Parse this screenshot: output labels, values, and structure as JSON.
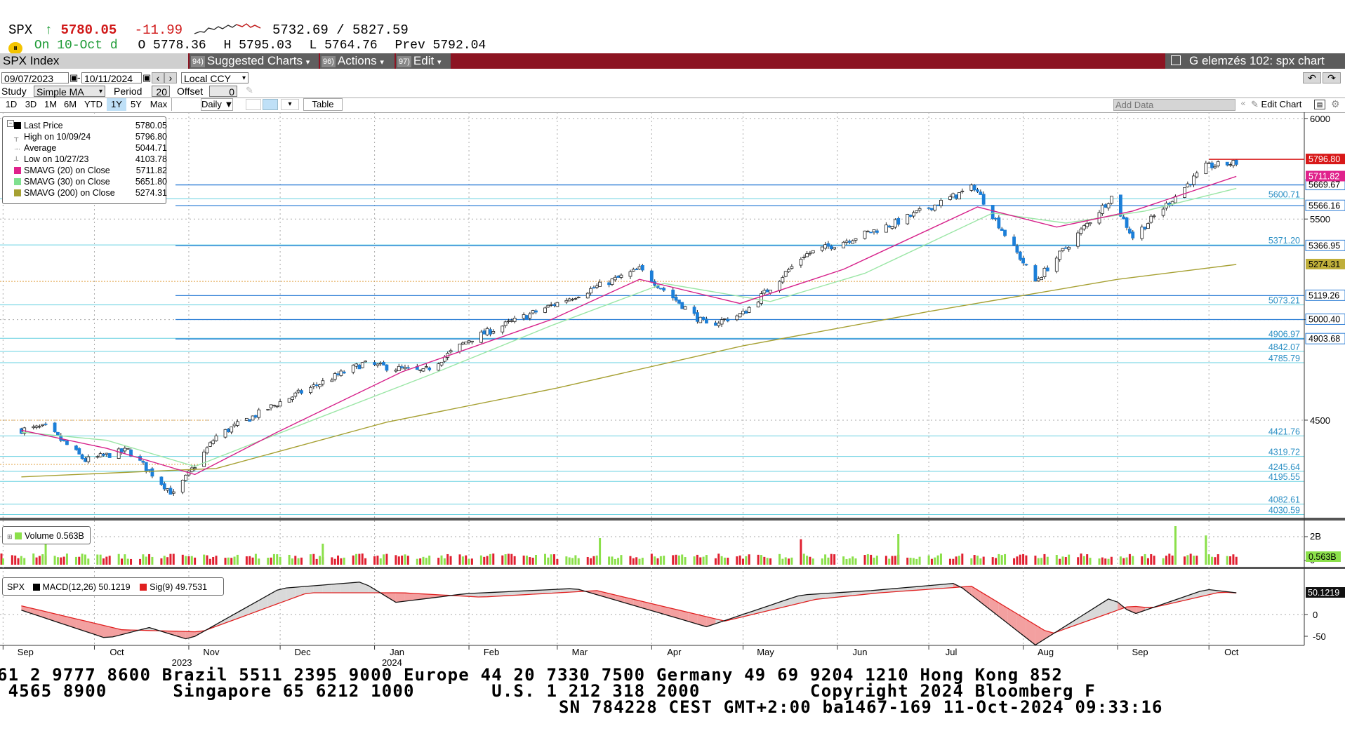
{
  "header": {
    "ticker": "SPX",
    "arrow": "↑",
    "last": "5780.05",
    "change": "-11.99",
    "range": "5732.69 / 5827.59",
    "on_date": "On 10-Oct d",
    "open": "O 5778.36",
    "high": "H 5795.03",
    "low": "L 5764.76",
    "prev": "Prev 5792.04"
  },
  "command_bar": {
    "security": "SPX Index",
    "suggested_charts": "Suggested Charts",
    "suggested_badge": "94)",
    "actions": "Actions",
    "actions_badge": "96)",
    "edit": "Edit",
    "edit_badge": "97)",
    "title": "G elemzés 102: spx chart"
  },
  "controls": {
    "start_date": "09/07/2023",
    "end_date": "10/11/2024",
    "currency": "Local CCY",
    "study_label": "Study",
    "study_value": "Simple MA",
    "period_label": "Period",
    "period_value": "20",
    "offset_label": "Offset",
    "offset_value": "0",
    "ranges": [
      "1D",
      "3D",
      "1M",
      "6M",
      "YTD",
      "1Y",
      "5Y",
      "Max"
    ],
    "selected_range": "1Y",
    "frequency": "Daily",
    "table": "Table",
    "add_data": "Add Data",
    "edit_chart": "Edit Chart"
  },
  "legend": {
    "rows": [
      {
        "label": "Last Price",
        "value": "5780.05",
        "color": "#000000"
      },
      {
        "label": "High on 10/09/24",
        "value": "5796.80",
        "color": ""
      },
      {
        "label": "Average",
        "value": "5044.71",
        "color": ""
      },
      {
        "label": "Low on 10/27/23",
        "value": "4103.78",
        "color": ""
      },
      {
        "label": "SMAVG (20)  on Close",
        "value": "5711.82",
        "color": "#e0228c"
      },
      {
        "label": "SMAVG (30)  on Close",
        "value": "5651.80",
        "color": "#7fe08f"
      },
      {
        "label": "SMAVG (200)  on Close",
        "value": "5274.31",
        "color": "#a6a032"
      }
    ]
  },
  "volume_legend": {
    "label": "Volume",
    "value": "0.563B",
    "color": "#8be04a"
  },
  "macd_legend": {
    "ticker": "SPX",
    "macd_label": "MACD(12,26)",
    "macd_value": "50.1219",
    "sig_label": "Sig(9)",
    "sig_value": "49.7531",
    "macd_color": "#000000",
    "sig_color": "#e02020"
  },
  "chart_data": {
    "type": "candlestick",
    "y_axis": {
      "ticks": [
        4500,
        5000,
        5500,
        6000
      ],
      "range": [
        4015,
        6010
      ]
    },
    "x_axis": {
      "months": [
        "Sep",
        "Oct",
        "Nov",
        "Dec",
        "Jan",
        "Feb",
        "Mar",
        "Apr",
        "May",
        "Jun",
        "Jul",
        "Aug",
        "Sep",
        "Oct"
      ],
      "years": [
        "2023",
        "2024"
      ]
    },
    "close_path": [
      {
        "date": "2023-09-07",
        "v": 4452
      },
      {
        "date": "2023-09-15",
        "v": 4465
      },
      {
        "date": "2023-09-28",
        "v": 4300
      },
      {
        "date": "2023-10-12",
        "v": 4350
      },
      {
        "date": "2023-10-27",
        "v": 4130
      },
      {
        "date": "2023-11-10",
        "v": 4420
      },
      {
        "date": "2023-12-01",
        "v": 4590
      },
      {
        "date": "2023-12-28",
        "v": 4780
      },
      {
        "date": "2024-01-17",
        "v": 4740
      },
      {
        "date": "2024-02-01",
        "v": 4900
      },
      {
        "date": "2024-02-28",
        "v": 5070
      },
      {
        "date": "2024-03-28",
        "v": 5250
      },
      {
        "date": "2024-04-19",
        "v": 4970
      },
      {
        "date": "2024-05-01",
        "v": 5030
      },
      {
        "date": "2024-05-21",
        "v": 5320
      },
      {
        "date": "2024-06-20",
        "v": 5480
      },
      {
        "date": "2024-07-16",
        "v": 5660
      },
      {
        "date": "2024-08-05",
        "v": 5190
      },
      {
        "date": "2024-08-30",
        "v": 5610
      },
      {
        "date": "2024-09-06",
        "v": 5410
      },
      {
        "date": "2024-09-30",
        "v": 5760
      },
      {
        "date": "2024-10-10",
        "v": 5780
      }
    ],
    "sma20": [
      {
        "date": "2023-09-07",
        "v": 4450
      },
      {
        "date": "2023-10-05",
        "v": 4360
      },
      {
        "date": "2023-11-03",
        "v": 4230
      },
      {
        "date": "2023-11-30",
        "v": 4440
      },
      {
        "date": "2024-01-10",
        "v": 4740
      },
      {
        "date": "2024-02-28",
        "v": 5000
      },
      {
        "date": "2024-03-28",
        "v": 5200
      },
      {
        "date": "2024-04-30",
        "v": 5080
      },
      {
        "date": "2024-06-03",
        "v": 5250
      },
      {
        "date": "2024-07-17",
        "v": 5560
      },
      {
        "date": "2024-08-12",
        "v": 5460
      },
      {
        "date": "2024-09-06",
        "v": 5540
      },
      {
        "date": "2024-10-10",
        "v": 5712
      }
    ],
    "sma30": [
      {
        "date": "2023-09-07",
        "v": 4440
      },
      {
        "date": "2023-10-05",
        "v": 4400
      },
      {
        "date": "2023-11-03",
        "v": 4270
      },
      {
        "date": "2023-12-10",
        "v": 4490
      },
      {
        "date": "2024-01-20",
        "v": 4730
      },
      {
        "date": "2024-02-28",
        "v": 4970
      },
      {
        "date": "2024-04-05",
        "v": 5180
      },
      {
        "date": "2024-05-10",
        "v": 5090
      },
      {
        "date": "2024-06-10",
        "v": 5230
      },
      {
        "date": "2024-07-22",
        "v": 5530
      },
      {
        "date": "2024-08-15",
        "v": 5480
      },
      {
        "date": "2024-09-10",
        "v": 5540
      },
      {
        "date": "2024-10-10",
        "v": 5652
      }
    ],
    "sma200": [
      {
        "date": "2023-09-07",
        "v": 4218
      },
      {
        "date": "2023-11-10",
        "v": 4260
      },
      {
        "date": "2024-01-05",
        "v": 4490
      },
      {
        "date": "2024-03-01",
        "v": 4660
      },
      {
        "date": "2024-05-01",
        "v": 4870
      },
      {
        "date": "2024-07-01",
        "v": 5040
      },
      {
        "date": "2024-09-01",
        "v": 5200
      },
      {
        "date": "2024-10-10",
        "v": 5274
      }
    ],
    "horizontal_levels": [
      {
        "v": 5669.67,
        "label": "5669.67",
        "style": "blue-tag"
      },
      {
        "v": 5600.71,
        "label": "5600.71",
        "style": "text"
      },
      {
        "v": 5566.16,
        "label": "5566.16",
        "style": "blue-tag"
      },
      {
        "v": 5371.2,
        "label": "5371.20",
        "style": "text"
      },
      {
        "v": 5366.95,
        "label": "5366.95",
        "style": "blue-tag"
      },
      {
        "v": 5119.26,
        "label": "5119.26",
        "style": "blue-tag"
      },
      {
        "v": 5073.21,
        "label": "5073.21",
        "style": "text"
      },
      {
        "v": 5000.4,
        "label": "5000.40",
        "style": "blue-tag"
      },
      {
        "v": 4906.97,
        "label": "4906.97",
        "style": "text"
      },
      {
        "v": 4903.68,
        "label": "4903.68",
        "style": "blue-tag"
      },
      {
        "v": 4842.07,
        "label": "4842.07",
        "style": "text"
      },
      {
        "v": 4785.79,
        "label": "4785.79",
        "style": "text"
      },
      {
        "v": 4421.76,
        "label": "4421.76",
        "style": "text"
      },
      {
        "v": 4319.72,
        "label": "4319.72",
        "style": "text"
      },
      {
        "v": 4245.64,
        "label": "4245.64",
        "style": "text"
      },
      {
        "v": 4195.55,
        "label": "4195.55",
        "style": "text"
      },
      {
        "v": 4082.61,
        "label": "4082.61",
        "style": "text"
      },
      {
        "v": 4030.59,
        "label": "4030.59",
        "style": "text"
      }
    ],
    "price_tags": [
      {
        "label": "5796.80",
        "bg": "#d81818",
        "fg": "#ffffff"
      },
      {
        "label": "5711.82",
        "bg": "#e0228c",
        "fg": "#ffffff"
      },
      {
        "label": "5274.31",
        "bg": "#bfae3a",
        "fg": "#000000"
      }
    ],
    "volume": {
      "ticks": [
        "2B",
        "0"
      ],
      "last": "0.563B"
    },
    "macd": {
      "ticks": [
        "0",
        "-50"
      ],
      "last": "50.1219",
      "macd_path": [
        {
          "date": "2023-09-07",
          "v": 10
        },
        {
          "date": "2023-10-05",
          "v": -55
        },
        {
          "date": "2023-10-19",
          "v": -30
        },
        {
          "date": "2023-11-01",
          "v": -58
        },
        {
          "date": "2023-12-01",
          "v": 60
        },
        {
          "date": "2023-12-28",
          "v": 75
        },
        {
          "date": "2024-01-08",
          "v": 28
        },
        {
          "date": "2024-01-31",
          "v": 48
        },
        {
          "date": "2024-03-07",
          "v": 60
        },
        {
          "date": "2024-04-19",
          "v": -28
        },
        {
          "date": "2024-05-20",
          "v": 45
        },
        {
          "date": "2024-06-12",
          "v": 55
        },
        {
          "date": "2024-07-10",
          "v": 72
        },
        {
          "date": "2024-08-05",
          "v": -70
        },
        {
          "date": "2024-08-30",
          "v": 40
        },
        {
          "date": "2024-09-06",
          "v": 0
        },
        {
          "date": "2024-09-30",
          "v": 58
        },
        {
          "date": "2024-10-10",
          "v": 50
        }
      ],
      "signal_path": [
        {
          "date": "2023-09-07",
          "v": 20
        },
        {
          "date": "2023-10-10",
          "v": -35
        },
        {
          "date": "2023-11-05",
          "v": -40
        },
        {
          "date": "2023-12-10",
          "v": 50
        },
        {
          "date": "2024-01-10",
          "v": 50
        },
        {
          "date": "2024-02-05",
          "v": 40
        },
        {
          "date": "2024-03-14",
          "v": 55
        },
        {
          "date": "2024-04-25",
          "v": -15
        },
        {
          "date": "2024-05-25",
          "v": 35
        },
        {
          "date": "2024-06-15",
          "v": 50
        },
        {
          "date": "2024-07-15",
          "v": 65
        },
        {
          "date": "2024-08-10",
          "v": -45
        },
        {
          "date": "2024-09-05",
          "v": 20
        },
        {
          "date": "2024-09-12",
          "v": 15
        },
        {
          "date": "2024-10-05",
          "v": 52
        },
        {
          "date": "2024-10-10",
          "v": 49.75
        }
      ]
    }
  },
  "footer": {
    "line1": "61 2 9777 8600 Brazil 5511 2395 9000 Europe 44 20 7330 7500 Germany 49 69 9204 1210 Hong Kong 852",
    "line2": " 4565 8900      Singapore 65 6212 1000       U.S. 1 212 318 2000          Copyright 2024 Bloomberg F",
    "line3": "SN 784228 CEST GMT+2:00 ba1467-169 11-Oct-2024 09:33:16"
  }
}
